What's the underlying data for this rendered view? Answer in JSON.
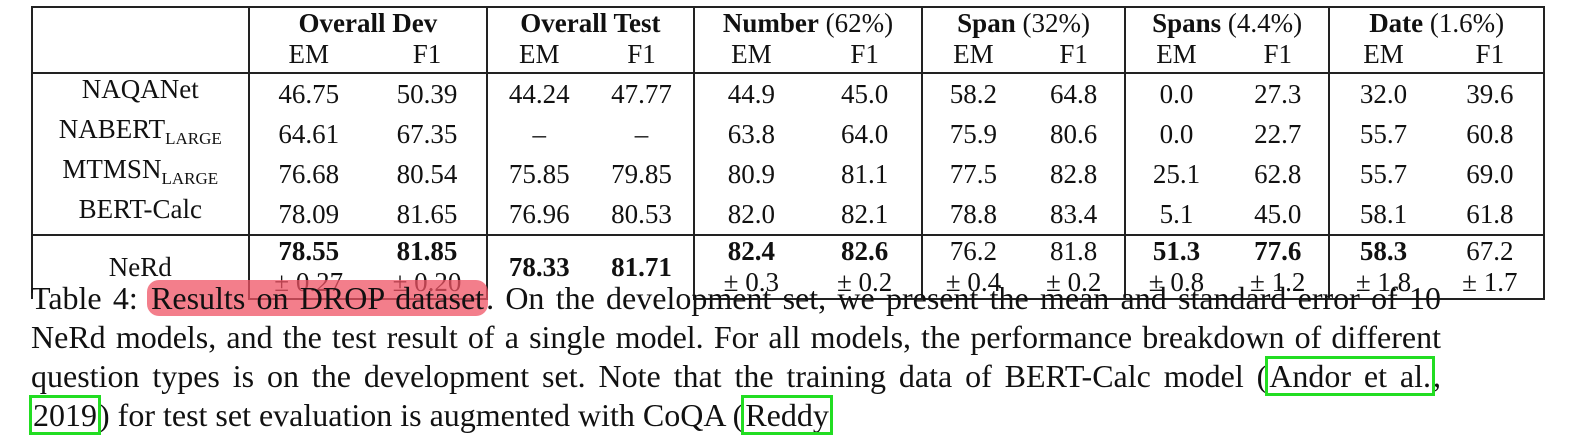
{
  "table": {
    "groups": [
      {
        "name": "Overall Dev",
        "pct": ""
      },
      {
        "name": "Overall Test",
        "pct": ""
      },
      {
        "name": "Number",
        "pct": "(62%)"
      },
      {
        "name": "Span",
        "pct": "(32%)"
      },
      {
        "name": "Spans",
        "pct": "(4.4%)"
      },
      {
        "name": "Date",
        "pct": "(1.6%)"
      }
    ],
    "subheaders": [
      "EM",
      "F1"
    ],
    "rows": [
      {
        "model": "NAQANet",
        "sub": "",
        "cells": [
          "46.75",
          "50.39",
          "44.24",
          "47.77",
          "44.9",
          "45.0",
          "58.2",
          "64.8",
          "0.0",
          "27.3",
          "32.0",
          "39.6"
        ]
      },
      {
        "model": "NABERT",
        "sub": "LARGE",
        "cells": [
          "64.61",
          "67.35",
          "–",
          "–",
          "63.8",
          "64.0",
          "75.9",
          "80.6",
          "0.0",
          "22.7",
          "55.7",
          "60.8"
        ]
      },
      {
        "model": "MTMSN",
        "sub": "LARGE",
        "cells": [
          "76.68",
          "80.54",
          "75.85",
          "79.85",
          "80.9",
          "81.1",
          "77.5",
          "82.8",
          "25.1",
          "62.8",
          "55.7",
          "69.0"
        ]
      },
      {
        "model": "BERT-Calc",
        "sub": "",
        "cells": [
          "78.09",
          "81.65",
          "76.96",
          "80.53",
          "82.0",
          "82.1",
          "78.8",
          "83.4",
          "5.1",
          "45.0",
          "58.1",
          "61.8"
        ]
      }
    ],
    "nerd": {
      "model": "NeRd",
      "dev": [
        "78.55",
        "81.85"
      ],
      "dev_std": [
        "± 0.27",
        "± 0.20"
      ],
      "test": [
        "78.33",
        "81.71"
      ],
      "rest": [
        "82.4",
        "82.6",
        "76.2",
        "81.8",
        "51.3",
        "77.6",
        "58.3",
        "67.2"
      ],
      "rest_std": [
        "± 0.3",
        "± 0.2",
        "± 0.4",
        "± 0.2",
        "± 0.8",
        "± 1.2",
        "± 1.8",
        "± 1.7"
      ]
    }
  },
  "caption": {
    "label": "Table 4:",
    "highlight": "Results on DROP dataset",
    "after_highlight": ".  On the development set, we present the mean and standard error of 10 NeRd models, and the test result of a single model.  For all models, the performance breakdown of different question types is on the development set.  Note that the training data of BERT-Calc model (",
    "cite1": "Andor et al.",
    "between": ", ",
    "cite2": "2019",
    "after_cite": ") for test set evaluation is augmented with CoQA (",
    "cite3": "Reddy"
  },
  "colors": {
    "highlight": "#ef5364",
    "citation_box": "#22dd22"
  }
}
